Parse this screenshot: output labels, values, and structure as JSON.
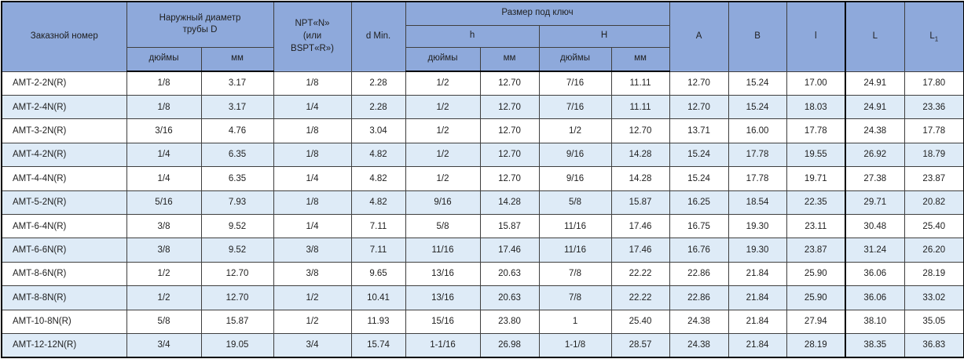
{
  "table": {
    "header": {
      "order_number": "Заказной номер",
      "outer_diameter_lines": [
        "Наружный диаметр",
        "трубы D"
      ],
      "npt_lines": [
        "NPT«N»",
        "(или",
        "BSPT«R»)"
      ],
      "d_min": "d Min.",
      "wrench_size": "Размер под ключ",
      "h_small": "h",
      "h_big": "H",
      "unit_inches": "дюймы",
      "unit_mm": "мм",
      "col_a": "A",
      "col_b": "B",
      "col_l_small": "l",
      "col_l_big": "L",
      "col_l1_base": "L",
      "col_l1_sub": "1"
    },
    "rows": [
      [
        "AMT-2-2N(R)",
        "1/8",
        "3.17",
        "1/8",
        "2.28",
        "1/2",
        "12.70",
        "7/16",
        "11.11",
        "12.70",
        "15.24",
        "17.00",
        "24.91",
        "17.80"
      ],
      [
        "AMT-2-4N(R)",
        "1/8",
        "3.17",
        "1/4",
        "2.28",
        "1/2",
        "12.70",
        "7/16",
        "11.11",
        "12.70",
        "15.24",
        "18.03",
        "24.91",
        "23.36"
      ],
      [
        "AMT-3-2N(R)",
        "3/16",
        "4.76",
        "1/8",
        "3.04",
        "1/2",
        "12.70",
        "1/2",
        "12.70",
        "13.71",
        "16.00",
        "17.78",
        "24.38",
        "17.78"
      ],
      [
        "AMT-4-2N(R)",
        "1/4",
        "6.35",
        "1/8",
        "4.82",
        "1/2",
        "12.70",
        "9/16",
        "14.28",
        "15.24",
        "17.78",
        "19.55",
        "26.92",
        "18.79"
      ],
      [
        "AMT-4-4N(R)",
        "1/4",
        "6.35",
        "1/4",
        "4.82",
        "1/2",
        "12.70",
        "9/16",
        "14.28",
        "15.24",
        "17.78",
        "19.71",
        "27.38",
        "23.87"
      ],
      [
        "AMT-5-2N(R)",
        "5/16",
        "7.93",
        "1/8",
        "4.82",
        "9/16",
        "14.28",
        "5/8",
        "15.87",
        "16.25",
        "18.54",
        "22.35",
        "29.71",
        "20.82"
      ],
      [
        "AMT-6-4N(R)",
        "3/8",
        "9.52",
        "1/4",
        "7.11",
        "5/8",
        "15.87",
        "11/16",
        "17.46",
        "16.75",
        "19.30",
        "23.11",
        "30.48",
        "25.40"
      ],
      [
        "AMT-6-6N(R)",
        "3/8",
        "9.52",
        "3/8",
        "7.11",
        "11/16",
        "17.46",
        "11/16",
        "17.46",
        "16.76",
        "19.30",
        "23.87",
        "31.24",
        "26.20"
      ],
      [
        "AMT-8-6N(R)",
        "1/2",
        "12.70",
        "3/8",
        "9.65",
        "13/16",
        "20.63",
        "7/8",
        "22.22",
        "22.86",
        "21.84",
        "25.90",
        "36.06",
        "28.19"
      ],
      [
        "AMT-8-8N(R)",
        "1/2",
        "12.70",
        "1/2",
        "10.41",
        "13/16",
        "20.63",
        "7/8",
        "22.22",
        "22.86",
        "21.84",
        "25.90",
        "36.06",
        "33.02"
      ],
      [
        "AMT-10-8N(R)",
        "5/8",
        "15.87",
        "1/2",
        "11.93",
        "15/16",
        "23.80",
        "1",
        "25.40",
        "24.38",
        "21.84",
        "27.94",
        "38.10",
        "35.05"
      ],
      [
        "AMT-12-12N(R)",
        "3/4",
        "19.05",
        "3/4",
        "15.74",
        "1-1/16",
        "26.98",
        "1-1/8",
        "28.57",
        "24.38",
        "21.84",
        "28.19",
        "38.35",
        "36.83"
      ]
    ]
  },
  "colors": {
    "header_bg": "#8EA9DB",
    "row_alt_bg": "#DEEBF7",
    "row_bg": "#FFFFFF",
    "border": "#3F3F3F",
    "border_heavy": "#000000",
    "text": "#1F1F1F"
  }
}
